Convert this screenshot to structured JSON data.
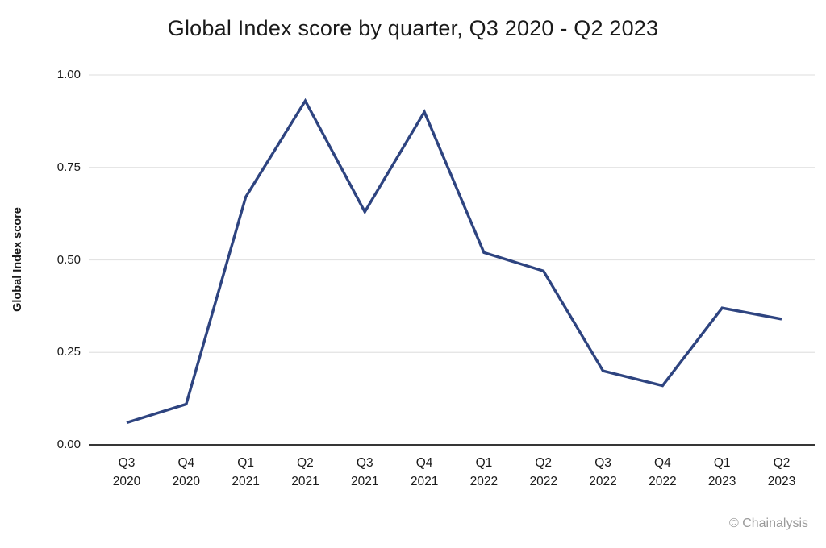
{
  "chart_data": {
    "type": "line",
    "title": "Global Index score by quarter, Q3 2020 - Q2 2023",
    "ylabel": "Global Index score",
    "xlabel": "",
    "categories": [
      "Q3 2020",
      "Q4 2020",
      "Q1 2021",
      "Q2 2021",
      "Q3 2021",
      "Q4 2021",
      "Q1 2022",
      "Q2 2022",
      "Q3 2022",
      "Q4 2022",
      "Q1 2023",
      "Q2 2023"
    ],
    "values": [
      0.06,
      0.11,
      0.67,
      0.93,
      0.63,
      0.9,
      0.52,
      0.47,
      0.2,
      0.16,
      0.37,
      0.34
    ],
    "ylim": [
      0,
      1
    ],
    "yticks": [
      0,
      0.25,
      0.5,
      0.75,
      1
    ],
    "ytick_labels": [
      "0.00",
      "0.25",
      "0.50",
      "0.75",
      "1.00"
    ],
    "grid": true,
    "legend": false,
    "line_color": "#2e4480",
    "gridline_color": "#e3e3e3",
    "axis_color": "#1a1a1a",
    "text_color": "#1a1a1a"
  },
  "attribution": "© Chainalysis"
}
